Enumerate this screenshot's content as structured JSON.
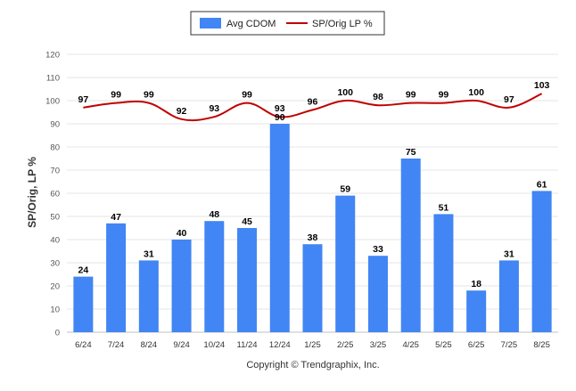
{
  "chart_data": {
    "type": "bar",
    "categories": [
      "6/24",
      "7/24",
      "8/24",
      "9/24",
      "10/24",
      "11/24",
      "12/24",
      "1/25",
      "2/25",
      "3/25",
      "4/25",
      "5/25",
      "6/25",
      "7/25",
      "8/25"
    ],
    "series": [
      {
        "name": "Avg CDOM",
        "type": "bar",
        "color": "#4285f4",
        "values": [
          24,
          47,
          31,
          40,
          48,
          45,
          90,
          38,
          59,
          33,
          75,
          51,
          18,
          31,
          61
        ]
      },
      {
        "name": "SP/Orig LP %",
        "type": "line",
        "color": "#c00000",
        "values": [
          97,
          99,
          99,
          92,
          93,
          99,
          93,
          96,
          100,
          98,
          99,
          99,
          100,
          97,
          103
        ]
      }
    ],
    "ylabel": "SP/Orig, LP %",
    "ylim": [
      0,
      120
    ],
    "yticks": [
      0,
      10,
      20,
      30,
      40,
      50,
      60,
      70,
      80,
      90,
      100,
      110,
      120
    ],
    "grid": true,
    "legend_position": "top-center",
    "footer": "Copyright © Trendgraphix, Inc."
  }
}
